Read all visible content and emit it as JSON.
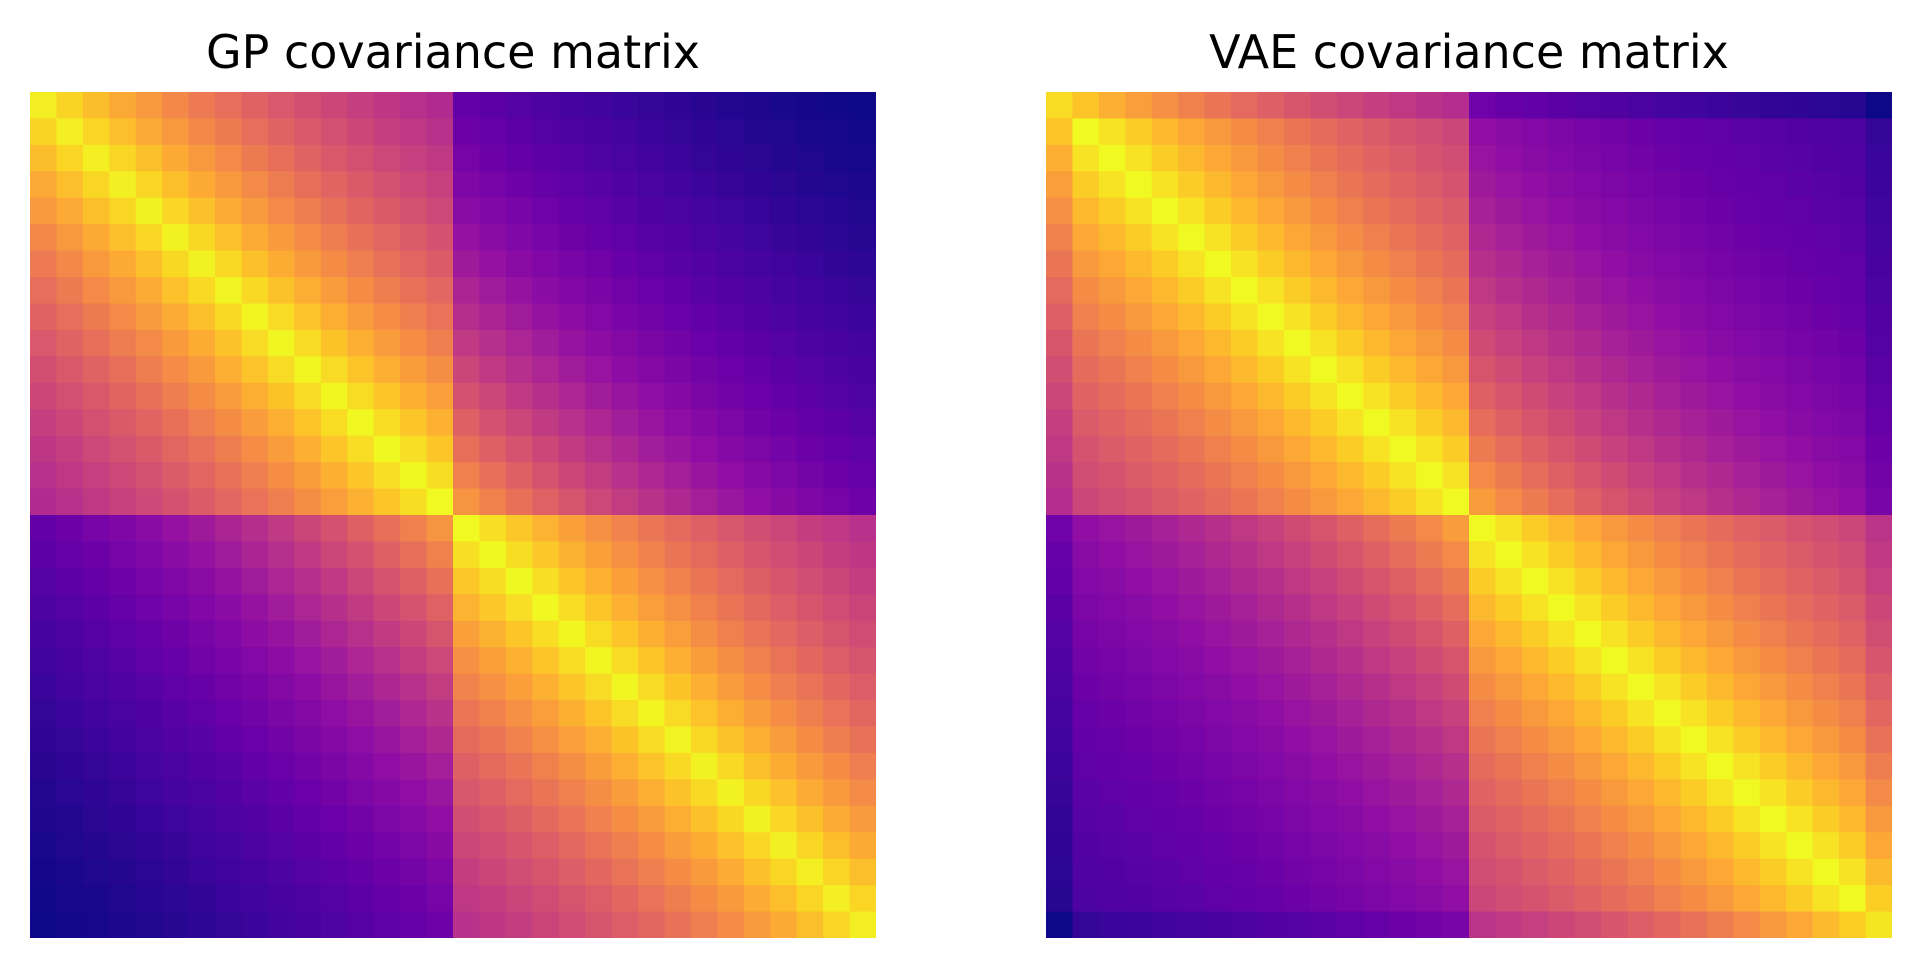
{
  "chart_data": [
    {
      "type": "heatmap",
      "title": "GP covariance matrix",
      "n": 32,
      "colormap": "plasma",
      "variant": "gp"
    },
    {
      "type": "heatmap",
      "title": "VAE covariance matrix",
      "n": 32,
      "colormap": "plasma",
      "variant": "vae"
    }
  ]
}
